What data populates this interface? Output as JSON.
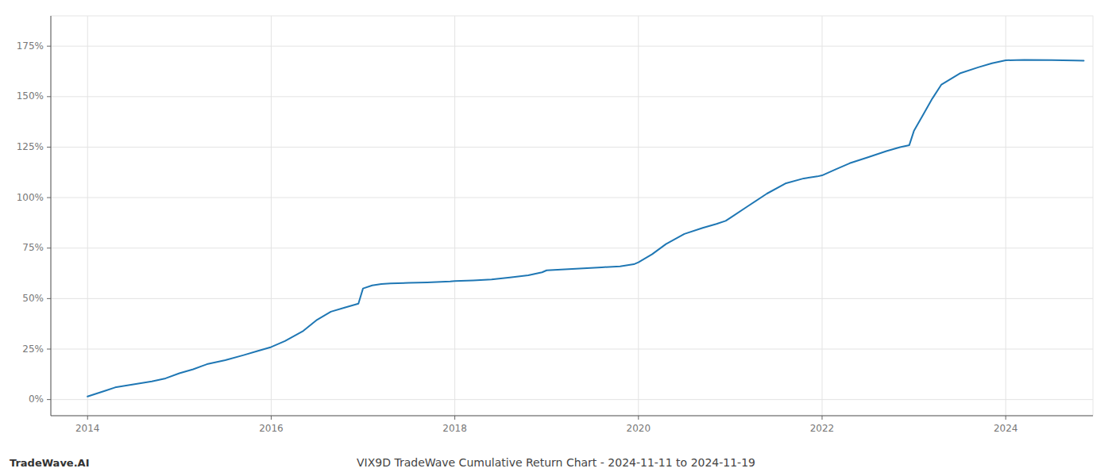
{
  "chart_data": {
    "type": "line",
    "title": "VIX9D TradeWave Cumulative Return Chart - 2024-11-11 to 2024-11-19",
    "annotations": [
      "TradeWave.AI"
    ],
    "color": "#1f77b4",
    "grid": true,
    "x": [
      2014.0,
      2014.1,
      2014.2,
      2014.3,
      2014.5,
      2014.7,
      2014.85,
      2015.0,
      2015.15,
      2015.3,
      2015.5,
      2015.7,
      2015.85,
      2016.0,
      2016.15,
      2016.35,
      2016.5,
      2016.65,
      2016.8,
      2016.95,
      2017.0,
      2017.1,
      2017.2,
      2017.3,
      2017.5,
      2017.7,
      2017.85,
      2017.95,
      2018.0,
      2018.2,
      2018.4,
      2018.6,
      2018.8,
      2018.95,
      2019.0,
      2019.2,
      2019.4,
      2019.6,
      2019.8,
      2019.95,
      2020.0,
      2020.15,
      2020.3,
      2020.5,
      2020.7,
      2020.85,
      2020.95,
      2021.0,
      2021.2,
      2021.4,
      2021.6,
      2021.8,
      2021.95,
      2022.0,
      2022.15,
      2022.3,
      2022.5,
      2022.7,
      2022.85,
      2022.95,
      2023.0,
      2023.1,
      2023.2,
      2023.3,
      2023.5,
      2023.7,
      2023.85,
      2023.95,
      2024.0,
      2024.2,
      2024.5,
      2024.75,
      2024.85
    ],
    "values": [
      1.5,
      3.0,
      4.5,
      6.0,
      7.5,
      9.0,
      10.5,
      13.0,
      15.0,
      17.5,
      19.5,
      22.0,
      24.0,
      26.0,
      29.0,
      34.0,
      39.5,
      43.5,
      45.5,
      47.5,
      55.0,
      56.5,
      57.2,
      57.5,
      57.8,
      58.0,
      58.3,
      58.5,
      58.7,
      59.0,
      59.5,
      60.5,
      61.5,
      63.0,
      64.0,
      64.5,
      65.0,
      65.5,
      66.0,
      67.0,
      68.0,
      72.0,
      77.0,
      82.0,
      85.0,
      87.0,
      88.5,
      90.0,
      96.0,
      102.0,
      107.0,
      109.5,
      110.5,
      111.0,
      114.0,
      117.0,
      120.0,
      123.0,
      125.0,
      126.0,
      133.0,
      141.0,
      149.0,
      156.0,
      161.5,
      164.5,
      166.5,
      167.5,
      168.0,
      168.2,
      168.1,
      167.9,
      167.8
    ],
    "xlim": [
      2013.6,
      2024.95
    ],
    "xticks": [
      2014,
      2016,
      2018,
      2020,
      2022,
      2024
    ],
    "ylim": [
      -8,
      190
    ],
    "yticks": [
      {
        "value": 0,
        "label": "0%"
      },
      {
        "value": 25,
        "label": "25%"
      },
      {
        "value": 50,
        "label": "50%"
      },
      {
        "value": 75,
        "label": "75%"
      },
      {
        "value": 100,
        "label": "100%"
      },
      {
        "value": 125,
        "label": "125%"
      },
      {
        "value": 150,
        "label": "150%"
      },
      {
        "value": 175,
        "label": "175%"
      }
    ]
  }
}
